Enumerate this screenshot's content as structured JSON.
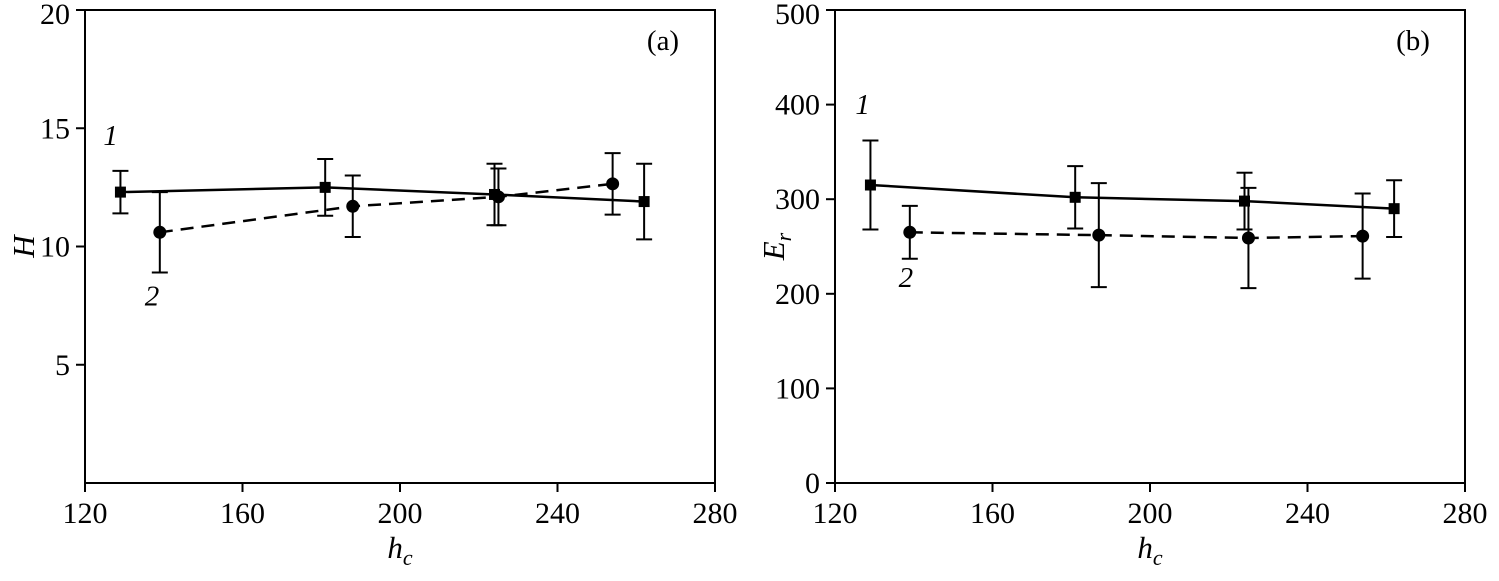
{
  "colors": {
    "ink": "#000000",
    "background": "#ffffff"
  },
  "chart_data": [
    {
      "type": "line",
      "panel_label": "(a)",
      "xlabel": {
        "base": "h",
        "sub": "c"
      },
      "ylabel": {
        "base": "H",
        "sub": ""
      },
      "xlim": [
        120,
        280
      ],
      "ylim": [
        0,
        20
      ],
      "xticks": [
        120,
        160,
        200,
        240,
        280
      ],
      "yticks": [
        5,
        10,
        15,
        20
      ],
      "grid": false,
      "legend": "none",
      "series": [
        {
          "name": "1",
          "marker": "square",
          "line_style": "solid",
          "points": [
            {
              "x": 129,
              "y": 12.3,
              "yerr": 0.9
            },
            {
              "x": 181,
              "y": 12.5,
              "yerr": 1.2
            },
            {
              "x": 224,
              "y": 12.2,
              "yerr": 1.3
            },
            {
              "x": 262,
              "y": 11.9,
              "yerr": 1.6
            }
          ]
        },
        {
          "name": "2",
          "marker": "circle",
          "line_style": "dashed",
          "points": [
            {
              "x": 139,
              "y": 10.6,
              "yerr": 1.7
            },
            {
              "x": 188,
              "y": 11.7,
              "yerr": 1.3
            },
            {
              "x": 225,
              "y": 12.1,
              "yerr": 1.2
            },
            {
              "x": 254,
              "y": 12.65,
              "yerr": 1.3
            }
          ]
        }
      ],
      "annotations": [
        {
          "text": "1",
          "x": 126.5,
          "y": 14.3
        },
        {
          "text": "2",
          "x": 137,
          "y": 7.5
        }
      ]
    },
    {
      "type": "line",
      "panel_label": "(b)",
      "xlabel": {
        "base": "h",
        "sub": "c"
      },
      "ylabel": {
        "base": "E",
        "sub": "r"
      },
      "xlim": [
        120,
        280
      ],
      "ylim": [
        0,
        500
      ],
      "xticks": [
        120,
        160,
        200,
        240,
        280
      ],
      "yticks": [
        0,
        100,
        200,
        300,
        400,
        500
      ],
      "grid": false,
      "legend": "none",
      "series": [
        {
          "name": "1",
          "marker": "square",
          "line_style": "solid",
          "points": [
            {
              "x": 129,
              "y": 315,
              "yerr": 47
            },
            {
              "x": 181,
              "y": 302,
              "yerr": 33
            },
            {
              "x": 224,
              "y": 298,
              "yerr": 30
            },
            {
              "x": 262,
              "y": 290,
              "yerr": 30
            }
          ]
        },
        {
          "name": "2",
          "marker": "circle",
          "line_style": "dashed",
          "points": [
            {
              "x": 139,
              "y": 265,
              "yerr": 28
            },
            {
              "x": 187,
              "y": 262,
              "yerr": 55
            },
            {
              "x": 225,
              "y": 259,
              "yerr": 53
            },
            {
              "x": 254,
              "y": 261,
              "yerr": 45
            }
          ]
        }
      ],
      "annotations": [
        {
          "text": "1",
          "x": 127,
          "y": 390
        },
        {
          "text": "2",
          "x": 138,
          "y": 207
        }
      ]
    }
  ]
}
